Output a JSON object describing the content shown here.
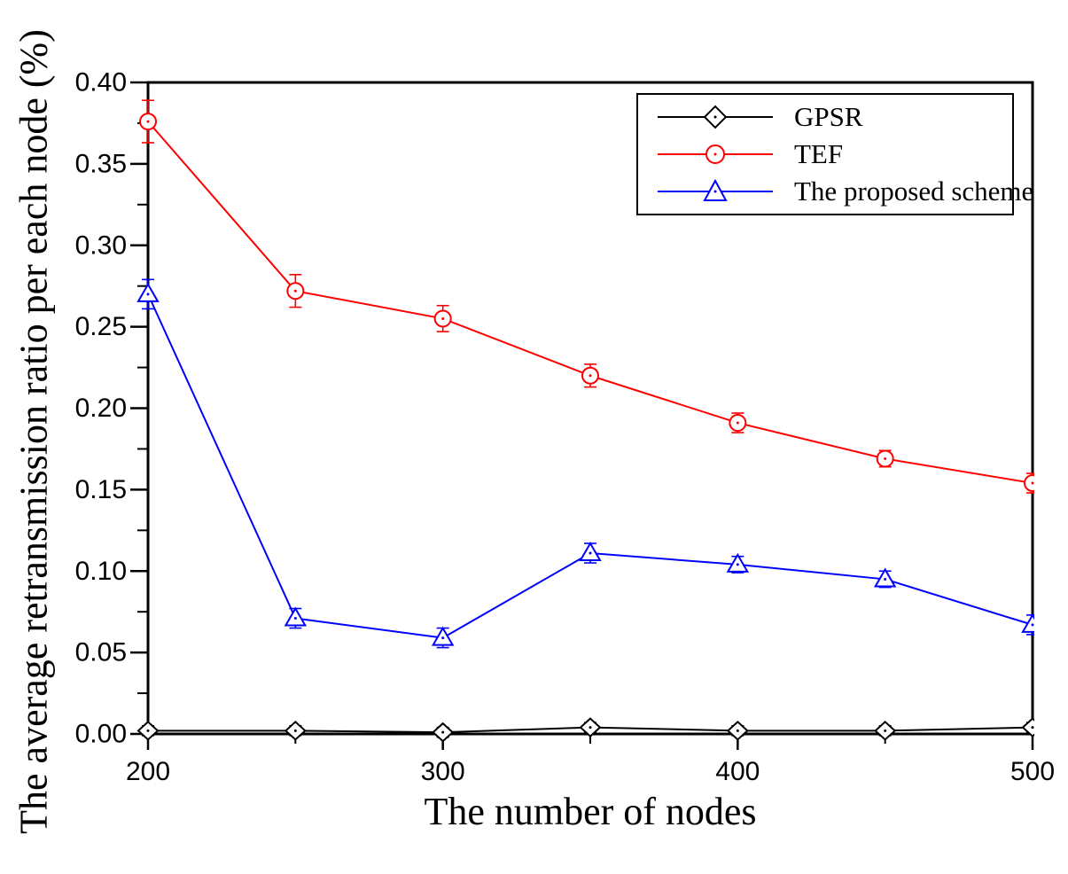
{
  "figure": {
    "background": "#ffffff"
  },
  "chart_data": {
    "type": "line",
    "title": "",
    "xlabel": "The number of nodes",
    "ylabel": "The average retransmission ratio per each node (%)",
    "x": [
      200,
      250,
      300,
      350,
      400,
      450,
      500
    ],
    "xlim": [
      200,
      500
    ],
    "ylim": [
      0.0,
      0.4
    ],
    "grid": false,
    "legend_position": "top-right-inside",
    "x_major_ticks": [
      200,
      300,
      400,
      500
    ],
    "x_tick_labels": [
      "200",
      "300",
      "400",
      "500"
    ],
    "x_minor_ticks": [
      250,
      350,
      450
    ],
    "y_major_ticks": [
      0.0,
      0.05,
      0.1,
      0.15,
      0.2,
      0.25,
      0.3,
      0.35,
      0.4
    ],
    "y_tick_labels": [
      "0.00",
      "0.05",
      "0.10",
      "0.15",
      "0.20",
      "0.25",
      "0.30",
      "0.35",
      "0.40"
    ],
    "y_minor_ticks": [
      0.025,
      0.075,
      0.125,
      0.175,
      0.225,
      0.275,
      0.325,
      0.375
    ],
    "series": [
      {
        "name": "GPSR",
        "color": "#000000",
        "marker": "diamond",
        "values": [
          0.002,
          0.002,
          0.001,
          0.004,
          0.002,
          0.002,
          0.004
        ],
        "errors": [
          0.003,
          0.003,
          0.003,
          0.003,
          0.003,
          0.003,
          0.003
        ]
      },
      {
        "name": "TEF",
        "color": "#ff0000",
        "marker": "circle",
        "values": [
          0.376,
          0.272,
          0.255,
          0.22,
          0.191,
          0.169,
          0.154
        ],
        "errors": [
          0.013,
          0.01,
          0.008,
          0.007,
          0.006,
          0.005,
          0.006
        ]
      },
      {
        "name": "The proposed scheme",
        "color": "#0000ff",
        "marker": "triangle",
        "values": [
          0.27,
          0.071,
          0.059,
          0.111,
          0.104,
          0.095,
          0.067
        ],
        "errors": [
          0.009,
          0.006,
          0.006,
          0.006,
          0.005,
          0.005,
          0.006
        ]
      }
    ]
  }
}
